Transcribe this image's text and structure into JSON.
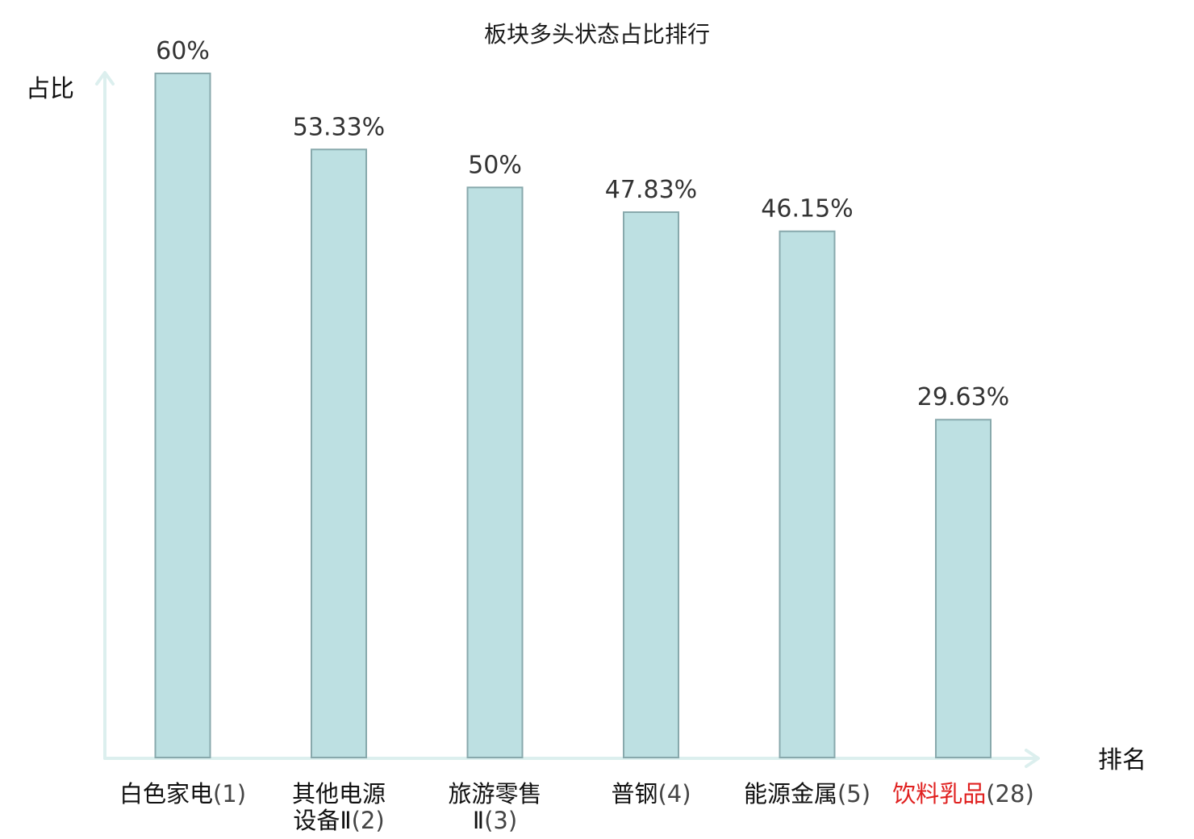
{
  "chart_data": {
    "type": "bar",
    "title": "板块多头状态占比排行",
    "ylabel": "占比",
    "xlabel": "排名",
    "ylim": [
      0,
      60
    ],
    "grid": false,
    "categories": [
      {
        "name_lines": [
          "白色家电"
        ],
        "rank_text": "(1)",
        "highlight": false
      },
      {
        "name_lines": [
          "其他电源",
          "设备Ⅱ"
        ],
        "rank_text": "(2)",
        "highlight": false
      },
      {
        "name_lines": [
          "旅游零售",
          "Ⅱ"
        ],
        "rank_text": "(3)",
        "highlight": false
      },
      {
        "name_lines": [
          "普钢"
        ],
        "rank_text": "(4)",
        "highlight": false
      },
      {
        "name_lines": [
          "能源金属"
        ],
        "rank_text": "(5)",
        "highlight": false
      },
      {
        "name_lines": [
          "饮料乳品"
        ],
        "rank_text": "(28)",
        "highlight": true
      }
    ],
    "values": [
      60,
      53.33,
      50,
      47.83,
      46.15,
      29.63
    ],
    "value_labels": [
      "60%",
      "53.33%",
      "50%",
      "47.83%",
      "46.15%",
      "29.63%"
    ],
    "colors": {
      "bar_fill": "#bde0e2",
      "bar_stroke": "#88a9ac",
      "axis": "#dcefee",
      "highlight_text": "#e0201f"
    }
  }
}
